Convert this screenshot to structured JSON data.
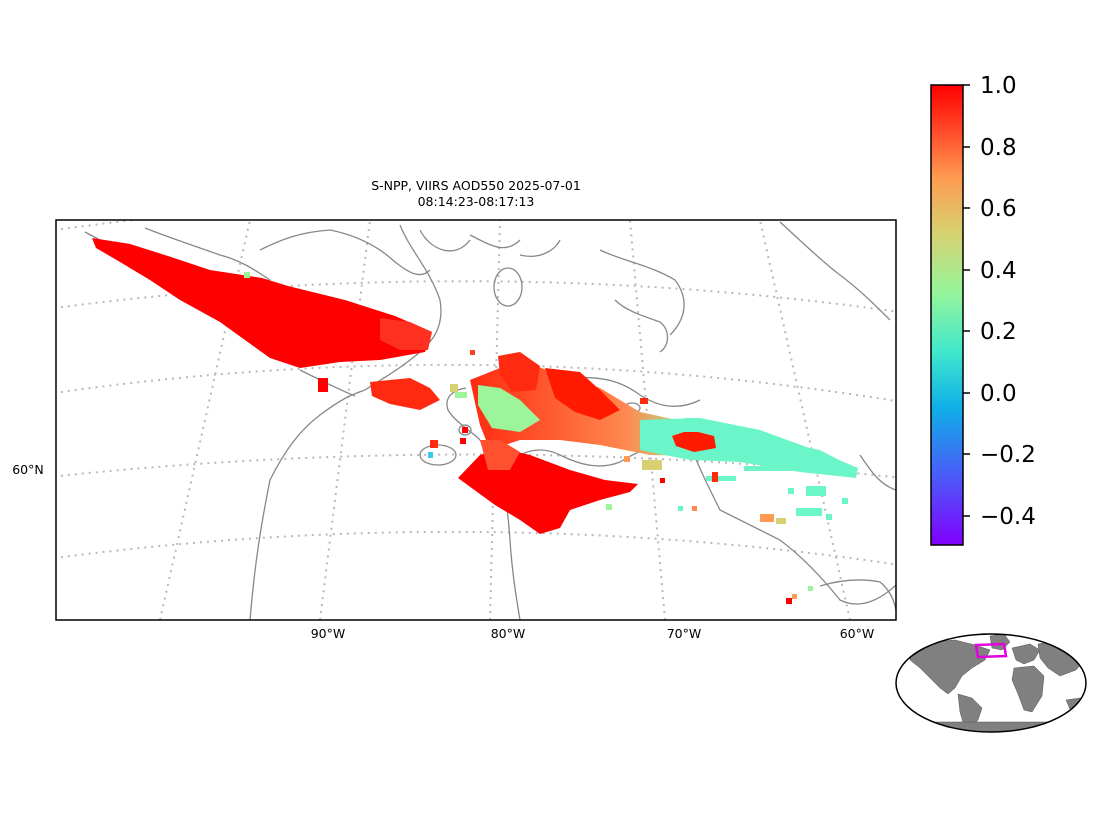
{
  "title": {
    "line1": "S-NPP, VIIRS AOD550 2025-07-01",
    "line2": "08:14:23-08:17:13"
  },
  "map": {
    "projection": "conic",
    "lon_labels": [
      "90°W",
      "80°W",
      "70°W",
      "60°W"
    ],
    "lat_labels": [
      "60°N"
    ],
    "gridlines": "dotted",
    "coastline_color": "#808080"
  },
  "colorbar": {
    "colormap": "rainbow",
    "range": [
      -0.5,
      1.0
    ],
    "ticks": [
      "1.0",
      "0.8",
      "0.6",
      "0.4",
      "0.2",
      "0.0",
      "−0.2",
      "−0.4"
    ]
  },
  "inset": {
    "type": "world-globe-locator",
    "land_color": "#808080",
    "box_color": "#e000e0"
  },
  "colors": {
    "high": "#ff1a00",
    "mid": "#9cf59a",
    "low": "#6cf5c8"
  }
}
